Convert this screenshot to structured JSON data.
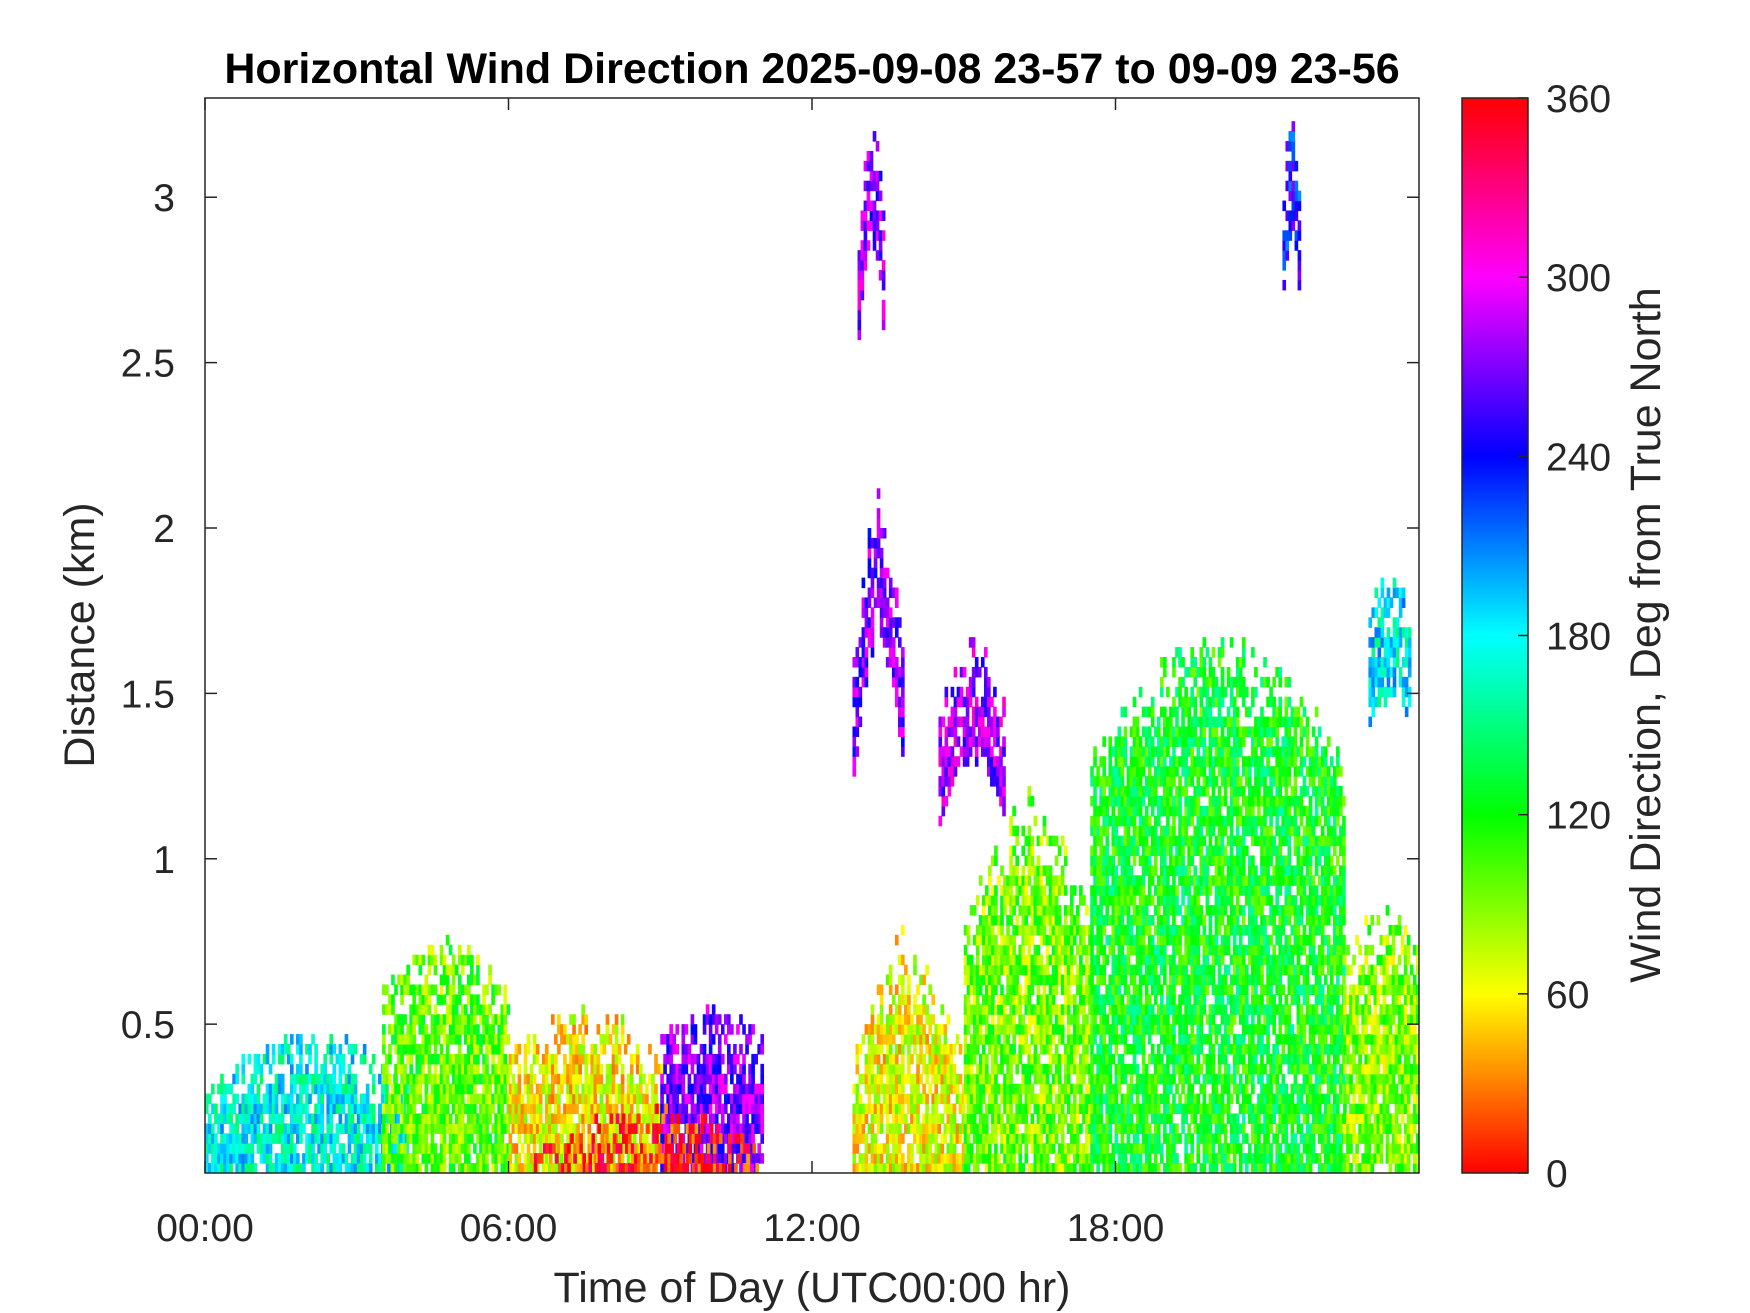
{
  "chart_data": {
    "type": "heatmap",
    "title": "Horizontal Wind Direction 2025-09-08 23-57 to 09-09 23-56",
    "xlabel": "Time of Day (UTC00:00 hr)",
    "ylabel": "Distance (km)",
    "x_ticks": [
      "00:00",
      "06:00",
      "12:00",
      "18:00"
    ],
    "x_tick_values": [
      0,
      6,
      12,
      18
    ],
    "y_ticks": [
      "0.5",
      "1",
      "1.5",
      "2",
      "2.5",
      "3"
    ],
    "y_tick_values": [
      0.5,
      1,
      1.5,
      2,
      2.5,
      3
    ],
    "xlim": [
      0,
      24
    ],
    "ylim": [
      0.05,
      3.3
    ],
    "colorbar": {
      "label": "Wind Direction, Deg from True North",
      "ticks": [
        "0",
        "60",
        "120",
        "180",
        "240",
        "300",
        "360"
      ],
      "tick_values": [
        0,
        60,
        120,
        180,
        240,
        300,
        360
      ],
      "range": [
        0,
        360
      ],
      "colormap": "hsv-like (red 0, yellow 60, green 120, cyan 180, blue 240, magenta 300, red 360)"
    },
    "regions": [
      {
        "x_range": [
          0,
          4
        ],
        "top_km": [
          0.3,
          0.5
        ],
        "dir_deg": 175
      },
      {
        "x_range": [
          3.5,
          6
        ],
        "top_km": [
          0.6,
          0.75
        ],
        "dir_deg": 100
      },
      {
        "x_range": [
          6,
          9
        ],
        "top_km": [
          0.4,
          0.55
        ],
        "dir_deg": 60
      },
      {
        "x_range": [
          9,
          11
        ],
        "top_km": [
          0.45,
          0.55
        ],
        "dir_deg": 270
      },
      {
        "x_range": [
          6.5,
          11
        ],
        "top_km": [
          0.1,
          0.25
        ],
        "dir_deg": 5
      },
      {
        "x_range": [
          12.8,
          15
        ],
        "top_km": [
          0.4,
          0.8
        ],
        "dir_deg": 65
      },
      {
        "x_range": [
          15,
          17.5
        ],
        "top_km": [
          0.8,
          1.2
        ],
        "dir_deg": 95
      },
      {
        "x_range": [
          17.5,
          22.5
        ],
        "top_km": [
          1.3,
          1.7
        ],
        "dir_deg": 125
      },
      {
        "x_range": [
          22.5,
          24
        ],
        "top_km": [
          0.7,
          0.85
        ],
        "dir_deg": 90
      },
      {
        "x_range": [
          12.8,
          13.8
        ],
        "top_km": [
          1.6,
          2.1
        ],
        "dir_deg": 270
      },
      {
        "x_range": [
          14.5,
          15.8
        ],
        "top_km": [
          1.45,
          1.7
        ],
        "dir_deg": 280
      },
      {
        "x_range": [
          12.9,
          13.4
        ],
        "top_km": [
          2.9,
          3.3
        ],
        "dir_deg": 275
      },
      {
        "x_range": [
          21.3,
          21.6
        ],
        "top_km": [
          3.05,
          3.3
        ],
        "dir_deg": 240
      },
      {
        "x_range": [
          23,
          23.8
        ],
        "top_km": [
          1.75,
          1.85
        ],
        "dir_deg": 180
      }
    ]
  }
}
